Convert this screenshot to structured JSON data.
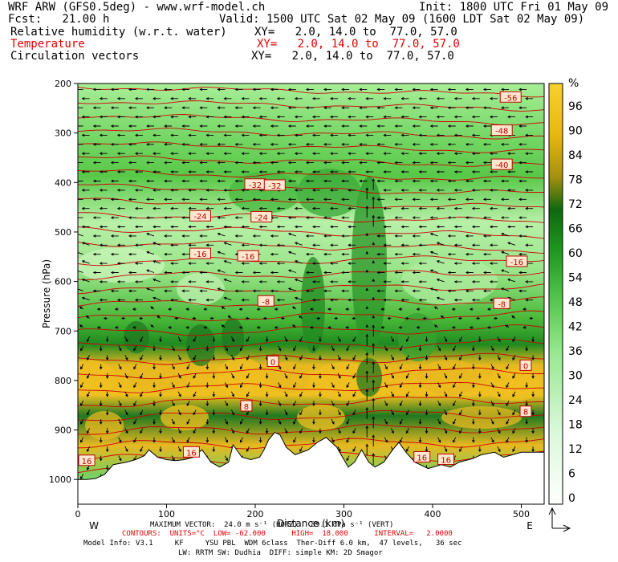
{
  "header": {
    "line1_left": "WRF ARW (GFS0.5deg) - www.wrf-model.ch",
    "line1_right": "Init: 1800 UTC Fri 01 May 09",
    "line2_left": "Fcst:   21.00 h",
    "line2_right": "Valid: 1500 UTC Sat 02 May 09 (1600 LDT Sat 02 May 09)",
    "rows": [
      {
        "name": "Relative humidity (w.r.t. water)",
        "xy": "XY=   2.0, 14.0 to  77.0, 57.0"
      },
      {
        "name": "Temperature",
        "xy": "XY=   2.0, 14.0 to  77.0, 57.0"
      },
      {
        "name": "Circulation vectors",
        "xy": "XY=   2.0, 14.0 to  77.0, 57.0"
      }
    ],
    "red_color": "#e00000"
  },
  "chart_data": {
    "type": "heatmap",
    "xlabel": "Distance (km)",
    "ylabel": "Pressure (hPa)",
    "xlim": [
      0,
      520
    ],
    "ylim": [
      1050,
      200
    ],
    "x_ticks": [
      0,
      100,
      200,
      300,
      400,
      500
    ],
    "y_ticks": [
      200,
      300,
      400,
      500,
      600,
      700,
      800,
      900,
      1000
    ],
    "left_label": "W",
    "right_label": "E",
    "colorbar": {
      "unit": "%",
      "ticks": [
        0,
        6,
        12,
        18,
        24,
        30,
        36,
        42,
        48,
        54,
        60,
        66,
        72,
        78,
        84,
        90,
        96
      ],
      "colors": [
        "#ffffff",
        "#f0fff0",
        "#d8f8d8",
        "#b8f0b0",
        "#98e890",
        "#78d870",
        "#58c850",
        "#38b030",
        "#209820",
        "#188018",
        "#106810",
        "#306810",
        "#888010",
        "#c8a010",
        "#e8b810",
        "#f0c020",
        "#f8d030"
      ]
    },
    "terrain_surface_hpa": [
      [
        0,
        1000
      ],
      [
        10,
        1000
      ],
      [
        20,
        998
      ],
      [
        30,
        990
      ],
      [
        40,
        970
      ],
      [
        55,
        965
      ],
      [
        65,
        960
      ],
      [
        75,
        952
      ],
      [
        80,
        940
      ],
      [
        90,
        955
      ],
      [
        100,
        960
      ],
      [
        110,
        962
      ],
      [
        120,
        960
      ],
      [
        130,
        955
      ],
      [
        140,
        940
      ],
      [
        150,
        965
      ],
      [
        160,
        975
      ],
      [
        170,
        965
      ],
      [
        175,
        930
      ],
      [
        185,
        955
      ],
      [
        195,
        960
      ],
      [
        205,
        955
      ],
      [
        210,
        940
      ],
      [
        215,
        920
      ],
      [
        222,
        905
      ],
      [
        228,
        910
      ],
      [
        235,
        935
      ],
      [
        245,
        950
      ],
      [
        260,
        940
      ],
      [
        270,
        925
      ],
      [
        280,
        915
      ],
      [
        292,
        935
      ],
      [
        300,
        960
      ],
      [
        305,
        975
      ],
      [
        312,
        965
      ],
      [
        320,
        940
      ],
      [
        328,
        965
      ],
      [
        335,
        975
      ],
      [
        345,
        965
      ],
      [
        355,
        940
      ],
      [
        362,
        925
      ],
      [
        370,
        945
      ],
      [
        380,
        965
      ],
      [
        395,
        978
      ],
      [
        410,
        970
      ],
      [
        420,
        975
      ],
      [
        430,
        965
      ],
      [
        445,
        958
      ],
      [
        455,
        950
      ],
      [
        470,
        945
      ],
      [
        480,
        955
      ],
      [
        490,
        950
      ],
      [
        500,
        945
      ],
      [
        510,
        945
      ],
      [
        520,
        945
      ]
    ],
    "temperature_contours": [
      {
        "label": "-56",
        "x": 488,
        "p": 228
      },
      {
        "label": "-48",
        "x": 478,
        "p": 295
      },
      {
        "label": "-40",
        "x": 478,
        "p": 364
      },
      {
        "label": "-32",
        "x": 200,
        "p": 404
      },
      {
        "label": "-32",
        "x": 222,
        "p": 406
      },
      {
        "label": "-24",
        "x": 138,
        "p": 468
      },
      {
        "label": "-24",
        "x": 207,
        "p": 470
      },
      {
        "label": "-16",
        "x": 138,
        "p": 544
      },
      {
        "label": "-16",
        "x": 192,
        "p": 549
      },
      {
        "label": "-16",
        "x": 495,
        "p": 560
      },
      {
        "label": "-8",
        "x": 212,
        "p": 640
      },
      {
        "label": "-8",
        "x": 478,
        "p": 645
      },
      {
        "label": "0",
        "x": 220,
        "p": 762
      },
      {
        "label": "0",
        "x": 505,
        "p": 770
      },
      {
        "label": "8",
        "x": 190,
        "p": 852
      },
      {
        "label": "8",
        "x": 505,
        "p": 863
      },
      {
        "label": "16",
        "x": 10,
        "p": 962
      },
      {
        "label": "16",
        "x": 128,
        "p": 945
      },
      {
        "label": "16",
        "x": 388,
        "p": 955
      },
      {
        "label": "16",
        "x": 415,
        "p": 960
      }
    ],
    "contour_interval_c": 2.0
  },
  "footer": {
    "max_vector": "MAXIMUM VECTOR:  24.0 m s⁻¹ (HORZ)   89.1 dPa s⁻¹ (VERT)",
    "contours": "CONTOURS:  UNITS=°C  LOW= -62.000      HIGH=  18.000      INTERVAL=   2.0000",
    "model_info": "Model Info: V3.1     KF     YSU PBL  WDM 6class  Ther-Diff 6.0 km,  47 levels,   36 sec",
    "model_info2": "LW: RRTM SW: Dudhia  DIFF: simple KM: 2D Smagor"
  }
}
